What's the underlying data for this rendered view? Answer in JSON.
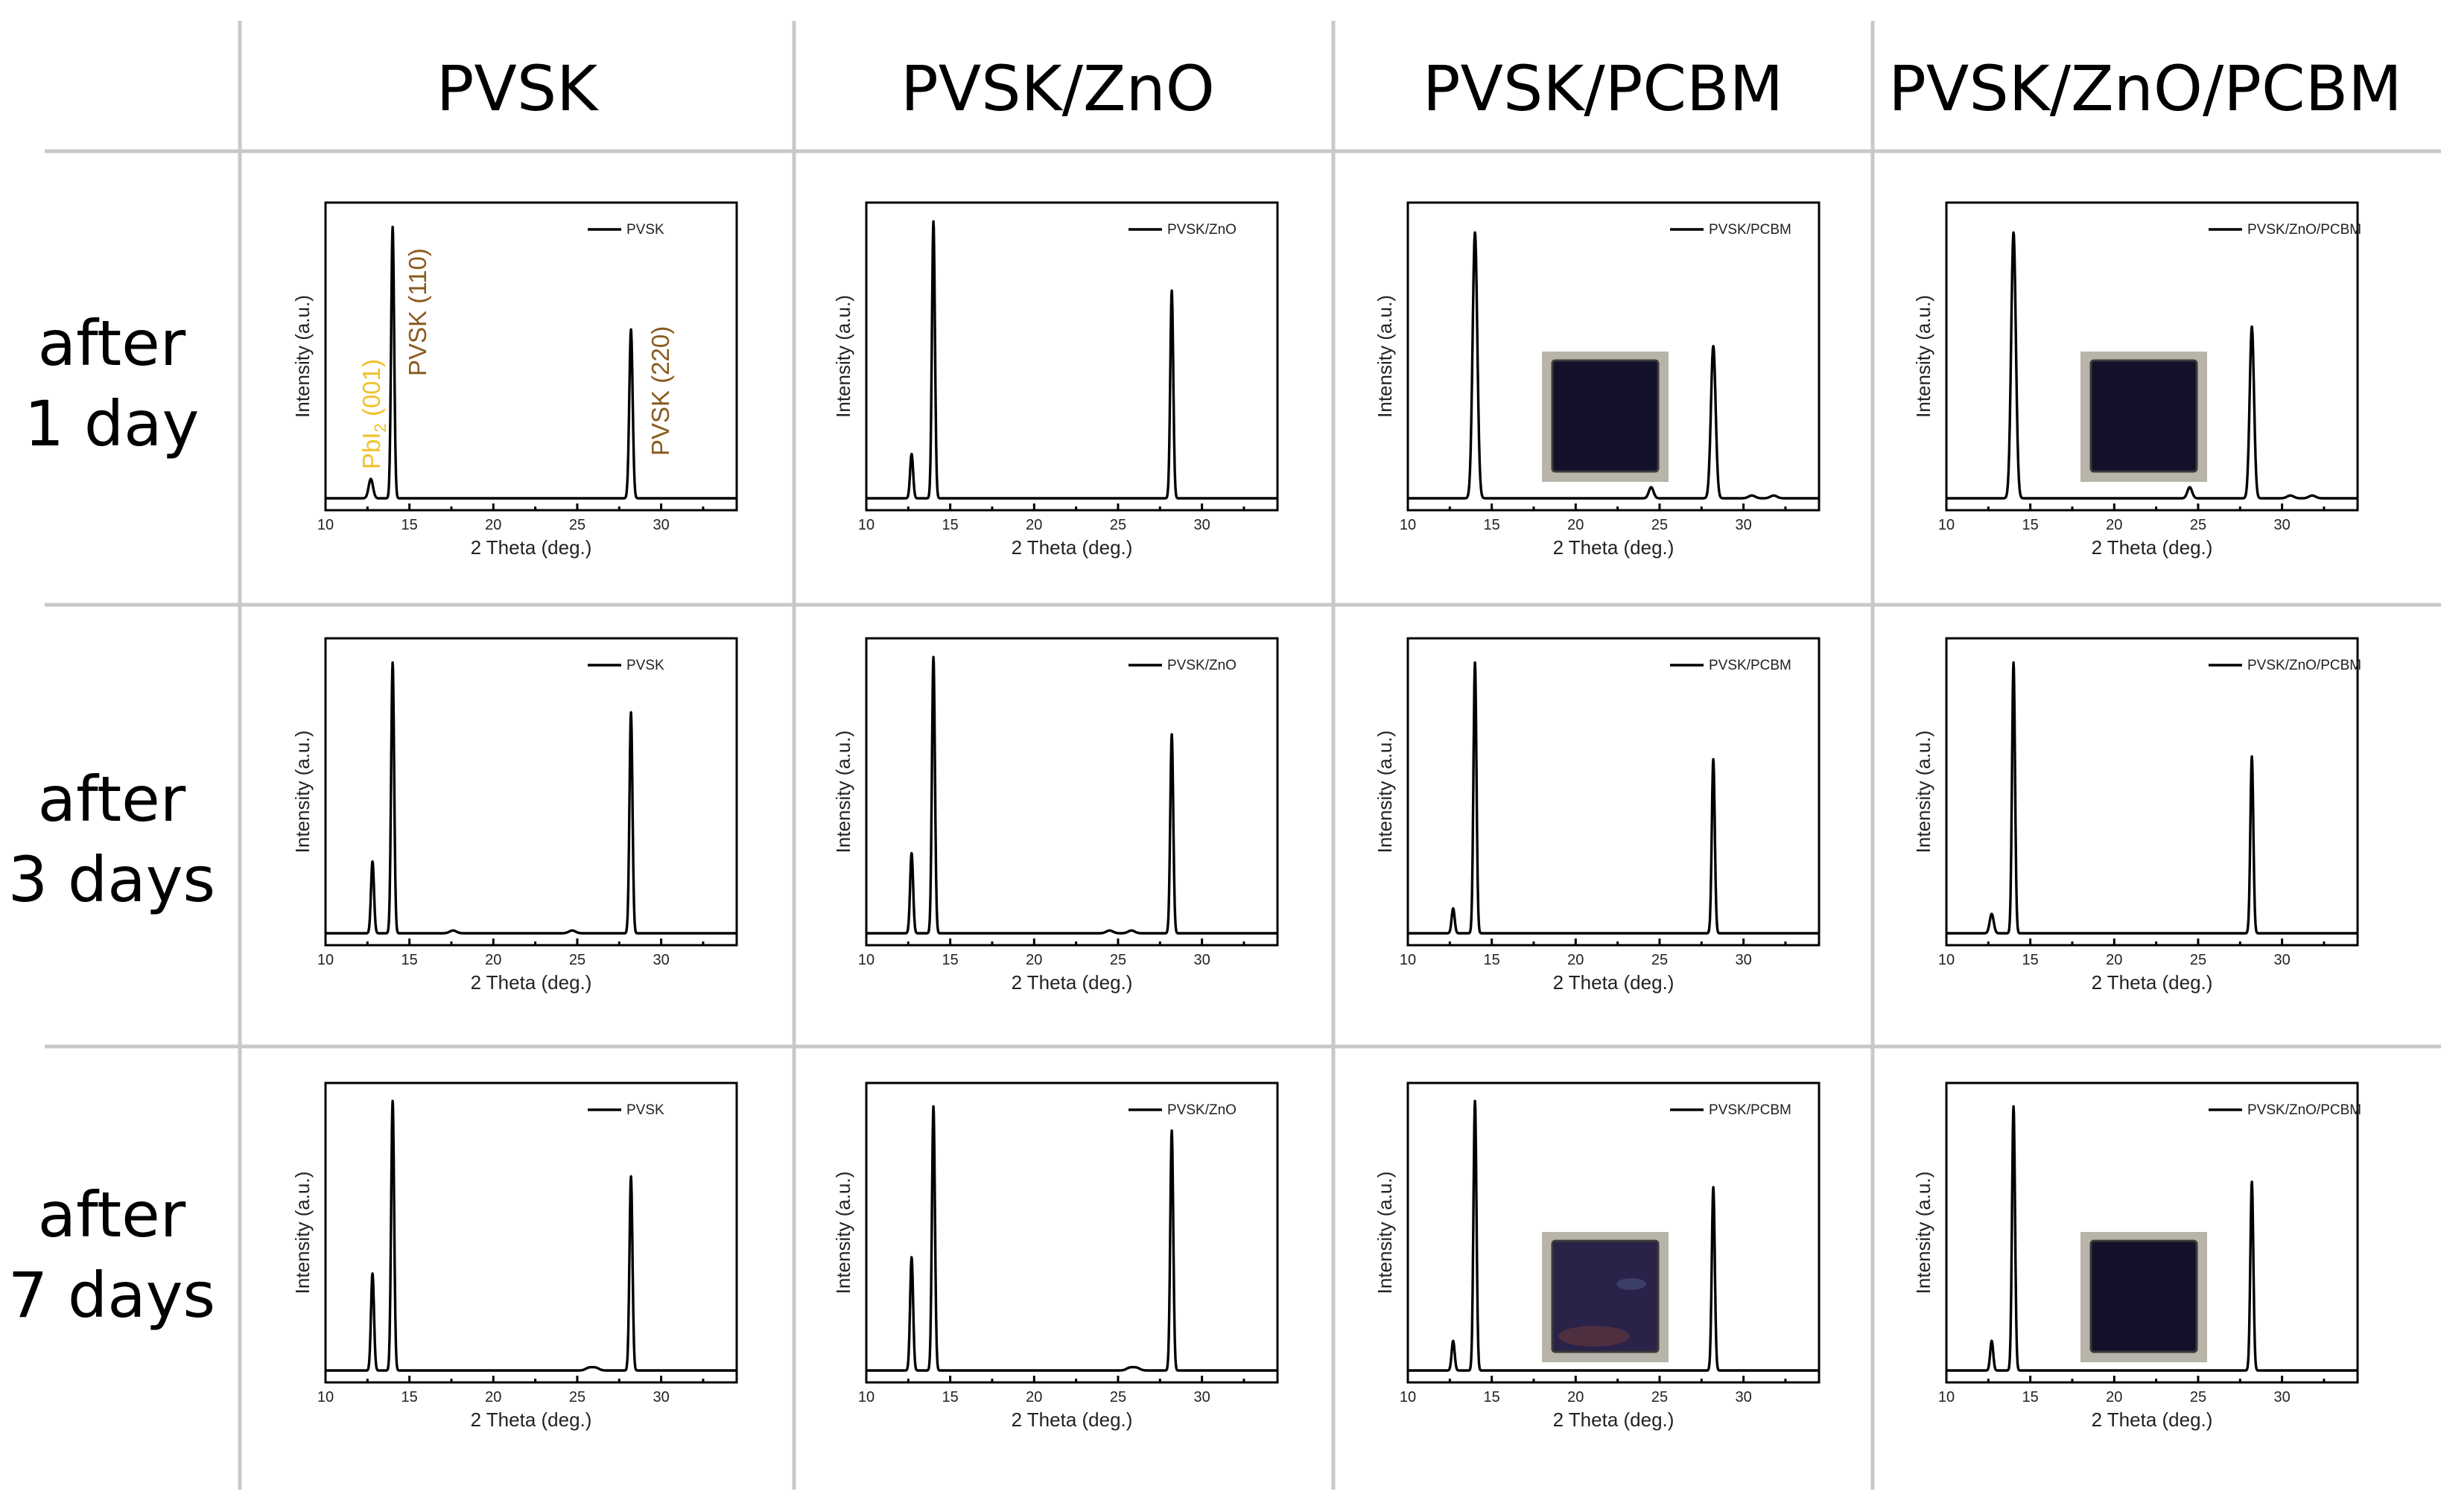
{
  "columns": [
    "PVSK",
    "PVSK/ZnO",
    "PVSK/PCBM",
    "PVSK/ZnO/PCBM"
  ],
  "rows": [
    {
      "line1": "after",
      "line2": "1 day"
    },
    {
      "line1": "after",
      "line2": "3 days"
    },
    {
      "line1": "after",
      "line2": "7 days"
    }
  ],
  "annotations": {
    "pbi_base": "PbI",
    "pbi_sub": "2",
    "pbi_rest": " (001)",
    "pvsk110": "PVSK (110)",
    "pvsk220": "PVSK (220)"
  },
  "colors": {
    "pbi": "#f0c22a",
    "pvsk": "#8a5a1e",
    "film_dark": "#13102a",
    "film_degraded": "#2a2248"
  },
  "chart_data": [
    {
      "type": "line",
      "row": 0,
      "col": 0,
      "legend": "PVSK",
      "xlabel": "2 Theta (deg.)",
      "ylabel": "Intensity (a.u.)",
      "xlim": [
        10,
        34.5
      ],
      "xticks": [
        10,
        15,
        20,
        25,
        30
      ],
      "peaks": [
        {
          "x": 12.7,
          "h": 0.07,
          "w": 0.13
        },
        {
          "x": 14.0,
          "h": 0.98,
          "w": 0.09
        },
        {
          "x": 28.2,
          "h": 0.61,
          "w": 0.1
        }
      ],
      "photo": null
    },
    {
      "type": "line",
      "row": 0,
      "col": 1,
      "legend": "PVSK/ZnO",
      "xlabel": "2 Theta (deg.)",
      "ylabel": "Intensity (a.u.)",
      "xlim": [
        10,
        34.5
      ],
      "xticks": [
        10,
        15,
        20,
        25,
        30
      ],
      "peaks": [
        {
          "x": 12.7,
          "h": 0.16,
          "w": 0.09
        },
        {
          "x": 14.0,
          "h": 1.0,
          "w": 0.09
        },
        {
          "x": 28.2,
          "h": 0.75,
          "w": 0.09
        }
      ],
      "photo": null
    },
    {
      "type": "line",
      "row": 0,
      "col": 2,
      "legend": "PVSK/PCBM",
      "xlabel": "2 Theta (deg.)",
      "ylabel": "Intensity (a.u.)",
      "xlim": [
        10,
        34.5
      ],
      "xticks": [
        10,
        15,
        20,
        25,
        30
      ],
      "peaks": [
        {
          "x": 14.0,
          "h": 0.96,
          "w": 0.14
        },
        {
          "x": 24.5,
          "h": 0.04,
          "w": 0.14
        },
        {
          "x": 28.2,
          "h": 0.55,
          "w": 0.14
        },
        {
          "x": 30.5,
          "h": 0.01,
          "w": 0.2
        },
        {
          "x": 31.8,
          "h": 0.01,
          "w": 0.2
        }
      ],
      "photo": "dark"
    },
    {
      "type": "line",
      "row": 0,
      "col": 3,
      "legend": "PVSK/ZnO/PCBM",
      "xlabel": "2 Theta (deg.)",
      "ylabel": "Intensity (a.u.)",
      "xlim": [
        10,
        34.5
      ],
      "xticks": [
        10,
        15,
        20,
        25,
        30
      ],
      "peaks": [
        {
          "x": 14.0,
          "h": 0.96,
          "w": 0.14
        },
        {
          "x": 24.5,
          "h": 0.04,
          "w": 0.14
        },
        {
          "x": 28.2,
          "h": 0.62,
          "w": 0.13
        },
        {
          "x": 30.5,
          "h": 0.01,
          "w": 0.2
        },
        {
          "x": 31.8,
          "h": 0.01,
          "w": 0.2
        }
      ],
      "photo": "dark"
    },
    {
      "type": "line",
      "row": 1,
      "col": 0,
      "legend": "PVSK",
      "xlabel": "2 Theta (deg.)",
      "ylabel": "Intensity (a.u.)",
      "xlim": [
        10,
        34.5
      ],
      "xticks": [
        10,
        15,
        20,
        25,
        30
      ],
      "peaks": [
        {
          "x": 12.8,
          "h": 0.26,
          "w": 0.09
        },
        {
          "x": 14.0,
          "h": 0.98,
          "w": 0.09
        },
        {
          "x": 28.2,
          "h": 0.8,
          "w": 0.09
        },
        {
          "x": 17.6,
          "h": 0.01,
          "w": 0.2
        },
        {
          "x": 24.7,
          "h": 0.01,
          "w": 0.2
        }
      ],
      "photo": null
    },
    {
      "type": "line",
      "row": 1,
      "col": 1,
      "legend": "PVSK/ZnO",
      "xlabel": "2 Theta (deg.)",
      "ylabel": "Intensity (a.u.)",
      "xlim": [
        10,
        34.5
      ],
      "xticks": [
        10,
        15,
        20,
        25,
        30
      ],
      "peaks": [
        {
          "x": 12.7,
          "h": 0.29,
          "w": 0.09
        },
        {
          "x": 14.0,
          "h": 1.0,
          "w": 0.09
        },
        {
          "x": 28.2,
          "h": 0.72,
          "w": 0.09
        },
        {
          "x": 24.5,
          "h": 0.01,
          "w": 0.2
        },
        {
          "x": 25.8,
          "h": 0.01,
          "w": 0.2
        }
      ],
      "photo": null
    },
    {
      "type": "line",
      "row": 1,
      "col": 2,
      "legend": "PVSK/PCBM",
      "xlabel": "2 Theta (deg.)",
      "ylabel": "Intensity (a.u.)",
      "xlim": [
        10,
        34.5
      ],
      "xticks": [
        10,
        15,
        20,
        25,
        30
      ],
      "peaks": [
        {
          "x": 12.7,
          "h": 0.09,
          "w": 0.09
        },
        {
          "x": 14.0,
          "h": 0.98,
          "w": 0.09
        },
        {
          "x": 28.2,
          "h": 0.63,
          "w": 0.09
        }
      ],
      "photo": null
    },
    {
      "type": "line",
      "row": 1,
      "col": 3,
      "legend": "PVSK/ZnO/PCBM",
      "xlabel": "2 Theta (deg.)",
      "ylabel": "Intensity (a.u.)",
      "xlim": [
        10,
        34.5
      ],
      "xticks": [
        10,
        15,
        20,
        25,
        30
      ],
      "peaks": [
        {
          "x": 12.7,
          "h": 0.07,
          "w": 0.12
        },
        {
          "x": 14.0,
          "h": 0.98,
          "w": 0.09
        },
        {
          "x": 28.2,
          "h": 0.64,
          "w": 0.09
        }
      ],
      "photo": null
    },
    {
      "type": "line",
      "row": 2,
      "col": 0,
      "legend": "PVSK",
      "xlabel": "2 Theta (deg.)",
      "ylabel": "Intensity (a.u.)",
      "xlim": [
        10,
        34.5
      ],
      "xticks": [
        10,
        15,
        20,
        25,
        30
      ],
      "peaks": [
        {
          "x": 12.8,
          "h": 0.36,
          "w": 0.09
        },
        {
          "x": 14.0,
          "h": 1.0,
          "w": 0.09
        },
        {
          "x": 28.2,
          "h": 0.72,
          "w": 0.09
        },
        {
          "x": 25.7,
          "h": 0.01,
          "w": 0.2
        },
        {
          "x": 26.1,
          "h": 0.01,
          "w": 0.2
        }
      ],
      "photo": null
    },
    {
      "type": "line",
      "row": 2,
      "col": 1,
      "legend": "PVSK/ZnO",
      "xlabel": "2 Theta (deg.)",
      "ylabel": "Intensity (a.u.)",
      "xlim": [
        10,
        34.5
      ],
      "xticks": [
        10,
        15,
        20,
        25,
        30
      ],
      "peaks": [
        {
          "x": 12.7,
          "h": 0.42,
          "w": 0.09
        },
        {
          "x": 14.0,
          "h": 0.98,
          "w": 0.09
        },
        {
          "x": 28.2,
          "h": 0.89,
          "w": 0.09
        },
        {
          "x": 25.7,
          "h": 0.01,
          "w": 0.2
        },
        {
          "x": 26.1,
          "h": 0.01,
          "w": 0.2
        }
      ],
      "photo": null
    },
    {
      "type": "line",
      "row": 2,
      "col": 2,
      "legend": "PVSK/PCBM",
      "xlabel": "2 Theta (deg.)",
      "ylabel": "Intensity (a.u.)",
      "xlim": [
        10,
        34.5
      ],
      "xticks": [
        10,
        15,
        20,
        25,
        30
      ],
      "peaks": [
        {
          "x": 12.7,
          "h": 0.11,
          "w": 0.09
        },
        {
          "x": 14.0,
          "h": 1.0,
          "w": 0.09
        },
        {
          "x": 28.2,
          "h": 0.68,
          "w": 0.09
        }
      ],
      "photo": "degraded"
    },
    {
      "type": "line",
      "row": 2,
      "col": 3,
      "legend": "PVSK/ZnO/PCBM",
      "xlabel": "2 Theta (deg.)",
      "ylabel": "Intensity (a.u.)",
      "xlim": [
        10,
        34.5
      ],
      "xticks": [
        10,
        15,
        20,
        25,
        30
      ],
      "peaks": [
        {
          "x": 12.7,
          "h": 0.11,
          "w": 0.09
        },
        {
          "x": 14.0,
          "h": 0.98,
          "w": 0.09
        },
        {
          "x": 28.2,
          "h": 0.7,
          "w": 0.09
        }
      ],
      "photo": "dark"
    }
  ]
}
